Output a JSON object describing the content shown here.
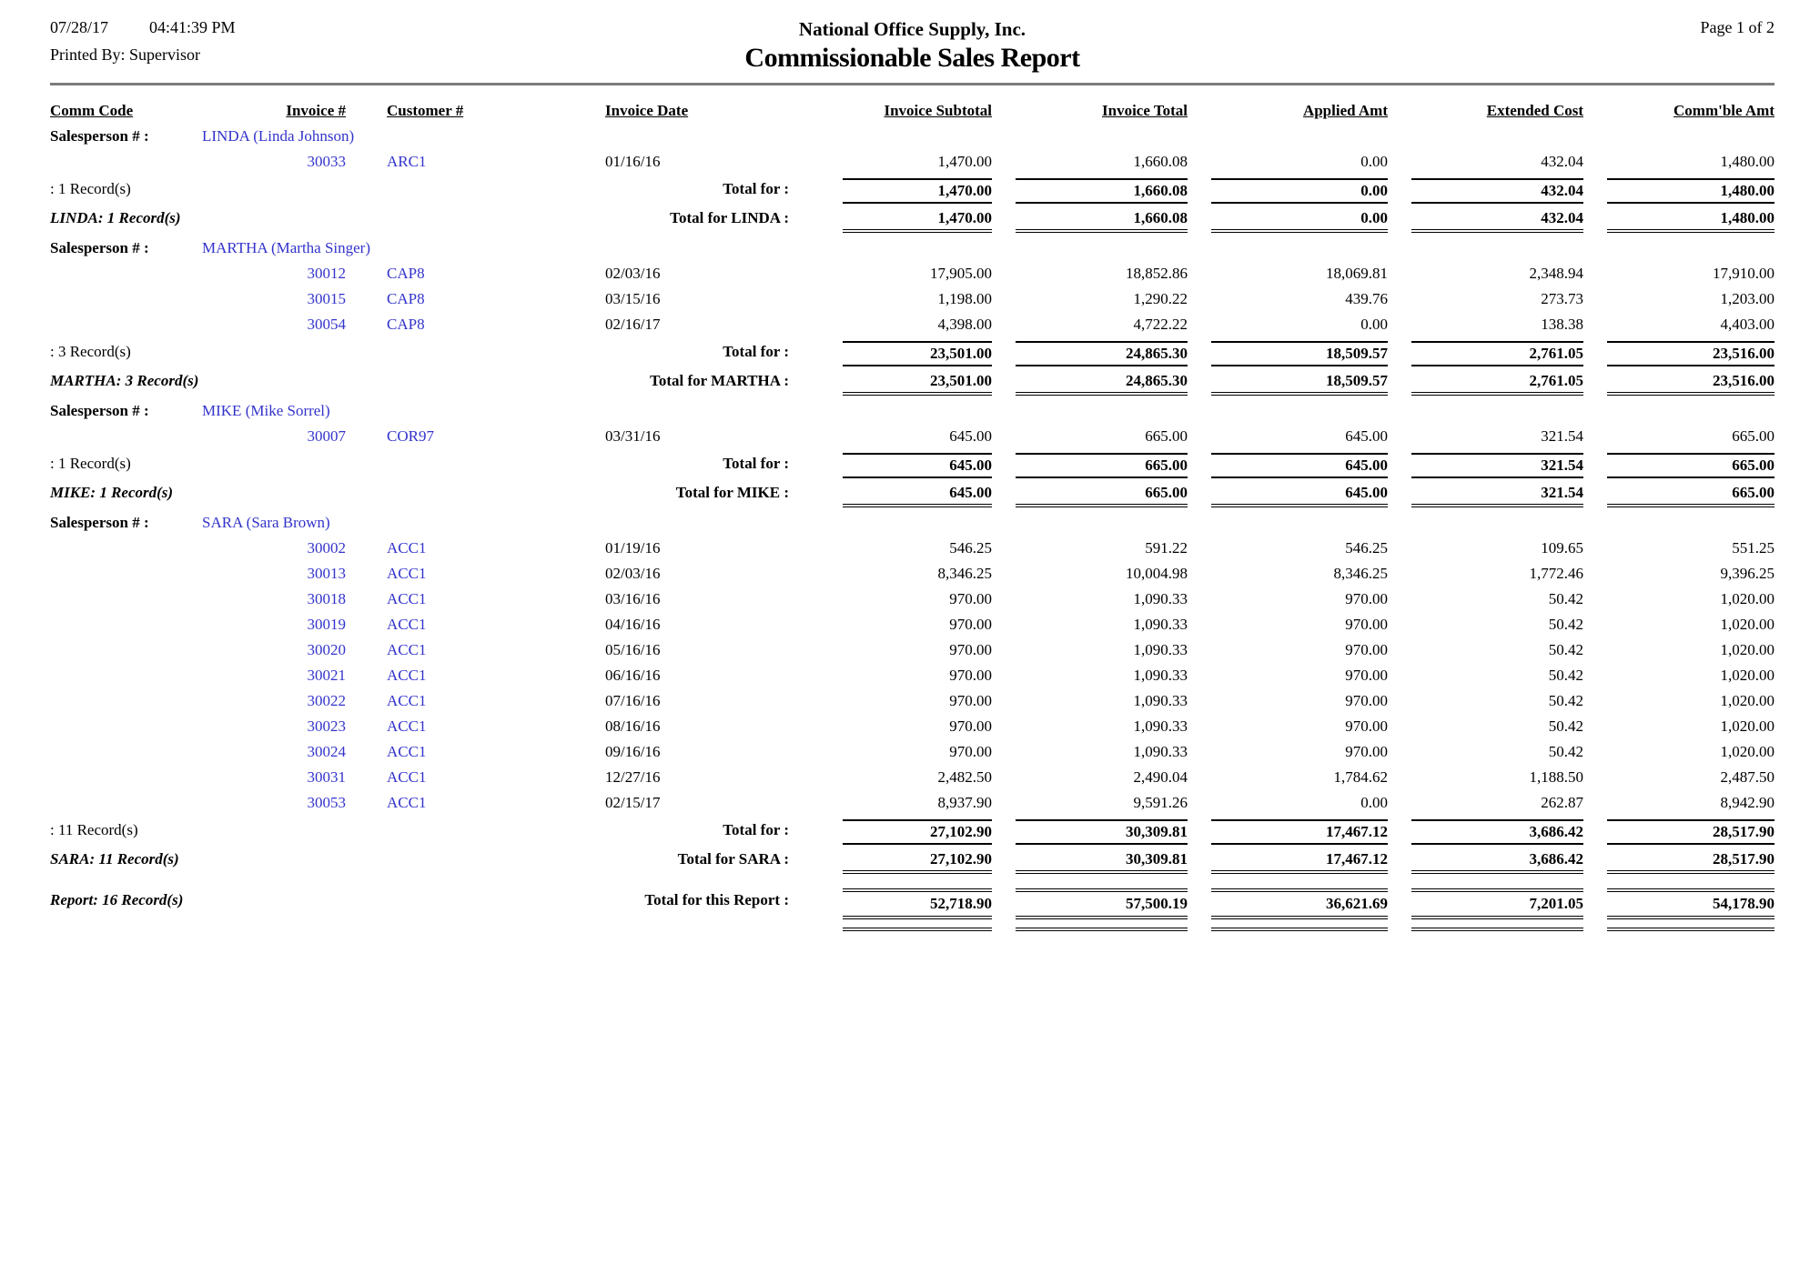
{
  "colors": {
    "link_blue": "#3333cc",
    "divider_gray": "#7b7b7b"
  },
  "header": {
    "date": "07/28/17",
    "time": "04:41:39 PM",
    "printed_by": "Printed By: Supervisor",
    "company": "National Office Supply, Inc.",
    "report_title": "Commissionable Sales Report",
    "page": "Page 1 of 2"
  },
  "columns": {
    "comm_code": "Comm Code",
    "invoice_num": "Invoice #",
    "customer_num": "Customer #",
    "invoice_date": "Invoice Date",
    "invoice_subtotal": "Invoice Subtotal",
    "invoice_total": "Invoice Total",
    "applied_amt": "Applied Amt",
    "extended_cost": "Extended Cost",
    "commble_amt": "Comm'ble Amt"
  },
  "labels": {
    "salesperson_prefix": "Salesperson # :"
  },
  "groups": [
    {
      "salesperson": "LINDA (Linda Johnson)",
      "rows": [
        [
          "30033",
          "ARC1",
          "01/16/16",
          "1,470.00",
          "1,660.08",
          "0.00",
          "432.04",
          "1,480.00"
        ]
      ],
      "record_count": ": 1 Record(s)",
      "subtotal_label": "Total for :",
      "subtotals": [
        "1,470.00",
        "1,660.08",
        "0.00",
        "432.04",
        "1,480.00"
      ],
      "group_record_count": "LINDA: 1 Record(s)",
      "group_total_label": "Total for LINDA :",
      "group_totals": [
        "1,470.00",
        "1,660.08",
        "0.00",
        "432.04",
        "1,480.00"
      ]
    },
    {
      "salesperson": "MARTHA (Martha Singer)",
      "rows": [
        [
          "30012",
          "CAP8",
          "02/03/16",
          "17,905.00",
          "18,852.86",
          "18,069.81",
          "2,348.94",
          "17,910.00"
        ],
        [
          "30015",
          "CAP8",
          "03/15/16",
          "1,198.00",
          "1,290.22",
          "439.76",
          "273.73",
          "1,203.00"
        ],
        [
          "30054",
          "CAP8",
          "02/16/17",
          "4,398.00",
          "4,722.22",
          "0.00",
          "138.38",
          "4,403.00"
        ]
      ],
      "record_count": ": 3 Record(s)",
      "subtotal_label": "Total for :",
      "subtotals": [
        "23,501.00",
        "24,865.30",
        "18,509.57",
        "2,761.05",
        "23,516.00"
      ],
      "group_record_count": "MARTHA: 3 Record(s)",
      "group_total_label": "Total for MARTHA :",
      "group_totals": [
        "23,501.00",
        "24,865.30",
        "18,509.57",
        "2,761.05",
        "23,516.00"
      ]
    },
    {
      "salesperson": "MIKE (Mike Sorrel)",
      "rows": [
        [
          "30007",
          "COR97",
          "03/31/16",
          "645.00",
          "665.00",
          "645.00",
          "321.54",
          "665.00"
        ]
      ],
      "record_count": ": 1 Record(s)",
      "subtotal_label": "Total for :",
      "subtotals": [
        "645.00",
        "665.00",
        "645.00",
        "321.54",
        "665.00"
      ],
      "group_record_count": "MIKE: 1 Record(s)",
      "group_total_label": "Total for MIKE :",
      "group_totals": [
        "645.00",
        "665.00",
        "645.00",
        "321.54",
        "665.00"
      ]
    },
    {
      "salesperson": "SARA (Sara Brown)",
      "rows": [
        [
          "30002",
          "ACC1",
          "01/19/16",
          "546.25",
          "591.22",
          "546.25",
          "109.65",
          "551.25"
        ],
        [
          "30013",
          "ACC1",
          "02/03/16",
          "8,346.25",
          "10,004.98",
          "8,346.25",
          "1,772.46",
          "9,396.25"
        ],
        [
          "30018",
          "ACC1",
          "03/16/16",
          "970.00",
          "1,090.33",
          "970.00",
          "50.42",
          "1,020.00"
        ],
        [
          "30019",
          "ACC1",
          "04/16/16",
          "970.00",
          "1,090.33",
          "970.00",
          "50.42",
          "1,020.00"
        ],
        [
          "30020",
          "ACC1",
          "05/16/16",
          "970.00",
          "1,090.33",
          "970.00",
          "50.42",
          "1,020.00"
        ],
        [
          "30021",
          "ACC1",
          "06/16/16",
          "970.00",
          "1,090.33",
          "970.00",
          "50.42",
          "1,020.00"
        ],
        [
          "30022",
          "ACC1",
          "07/16/16",
          "970.00",
          "1,090.33",
          "970.00",
          "50.42",
          "1,020.00"
        ],
        [
          "30023",
          "ACC1",
          "08/16/16",
          "970.00",
          "1,090.33",
          "970.00",
          "50.42",
          "1,020.00"
        ],
        [
          "30024",
          "ACC1",
          "09/16/16",
          "970.00",
          "1,090.33",
          "970.00",
          "50.42",
          "1,020.00"
        ],
        [
          "30031",
          "ACC1",
          "12/27/16",
          "2,482.50",
          "2,490.04",
          "1,784.62",
          "1,188.50",
          "2,487.50"
        ],
        [
          "30053",
          "ACC1",
          "02/15/17",
          "8,937.90",
          "9,591.26",
          "0.00",
          "262.87",
          "8,942.90"
        ]
      ],
      "record_count": ": 11 Record(s)",
      "subtotal_label": "Total for :",
      "subtotals": [
        "27,102.90",
        "30,309.81",
        "17,467.12",
        "3,686.42",
        "28,517.90"
      ],
      "group_record_count": "SARA: 11 Record(s)",
      "group_total_label": "Total for SARA :",
      "group_totals": [
        "27,102.90",
        "30,309.81",
        "17,467.12",
        "3,686.42",
        "28,517.90"
      ]
    }
  ],
  "report_footer": {
    "record_count": "Report: 16 Record(s)",
    "total_label": "Total for this Report :",
    "totals": [
      "52,718.90",
      "57,500.19",
      "36,621.69",
      "7,201.05",
      "54,178.90"
    ]
  }
}
